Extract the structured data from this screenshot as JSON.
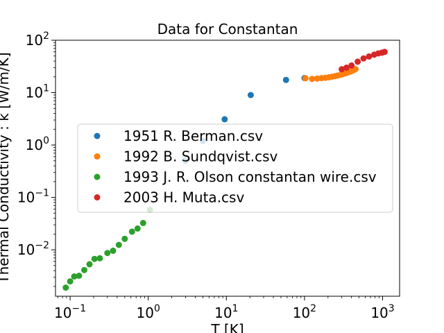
{
  "chart_data": {
    "type": "scatter",
    "title": "Data for Constantan",
    "xlabel": "T [K]",
    "ylabel": "Thermal Conductivity : k [W/m/K]",
    "xscale": "log",
    "yscale": "log",
    "xlim": [
      0.065,
      1650
    ],
    "ylim": [
      0.0013,
      100
    ],
    "x_ticks": [
      {
        "value": 0.1,
        "base": "10",
        "exp": "−1"
      },
      {
        "value": 1,
        "base": "10",
        "exp": "0"
      },
      {
        "value": 10,
        "base": "10",
        "exp": "1"
      },
      {
        "value": 100,
        "base": "10",
        "exp": "2"
      },
      {
        "value": 1000,
        "base": "10",
        "exp": "3"
      }
    ],
    "y_ticks": [
      {
        "value": 0.01,
        "base": "10",
        "exp": "−2"
      },
      {
        "value": 0.1,
        "base": "10",
        "exp": "−1"
      },
      {
        "value": 1,
        "base": "10",
        "exp": "0"
      },
      {
        "value": 10,
        "base": "10",
        "exp": "1"
      },
      {
        "value": 100,
        "base": "10",
        "exp": "2"
      }
    ],
    "grid": false,
    "legend_position": "center-left",
    "series": [
      {
        "name": "1951 R. Berman.csv",
        "color": "#1f77b4",
        "x": [
          3,
          5,
          9.5,
          20.5,
          58,
          100
        ],
        "y": [
          0.5,
          1.2,
          3.1,
          9,
          17.5,
          19
        ]
      },
      {
        "name": "1992 B. Sundqvist.csv",
        "color": "#ff7f0e",
        "x": [
          103,
          125,
          145,
          165,
          185,
          205,
          225,
          245,
          265,
          290,
          310,
          335,
          360,
          385,
          410,
          430,
          450
        ],
        "y": [
          18.8,
          18.3,
          18.6,
          18.9,
          19.2,
          19.6,
          20.1,
          20.6,
          21.2,
          21.9,
          22.6,
          23.4,
          24.3,
          25.2,
          26.2,
          27.1,
          28.1
        ]
      },
      {
        "name": "1993 J. R. Olson constantan wire.csv",
        "color": "#2ca02c",
        "x": [
          0.088,
          0.1,
          0.113,
          0.13,
          0.152,
          0.177,
          0.205,
          0.24,
          0.3,
          0.355,
          0.42,
          0.5,
          0.62,
          0.73,
          0.86,
          1.05
        ],
        "y": [
          0.0019,
          0.0025,
          0.0031,
          0.0032,
          0.0041,
          0.0053,
          0.0067,
          0.0069,
          0.0087,
          0.0096,
          0.0124,
          0.0162,
          0.0222,
          0.0255,
          0.0325,
          0.058
        ]
      },
      {
        "name": "2003 H. Muta.csv",
        "color": "#d62728",
        "x": [
          300,
          345,
          400,
          480,
          570,
          670,
          780,
          880,
          980,
          1060
        ],
        "y": [
          28,
          30,
          33,
          39,
          45,
          49,
          53,
          56,
          58,
          60
        ]
      }
    ]
  }
}
